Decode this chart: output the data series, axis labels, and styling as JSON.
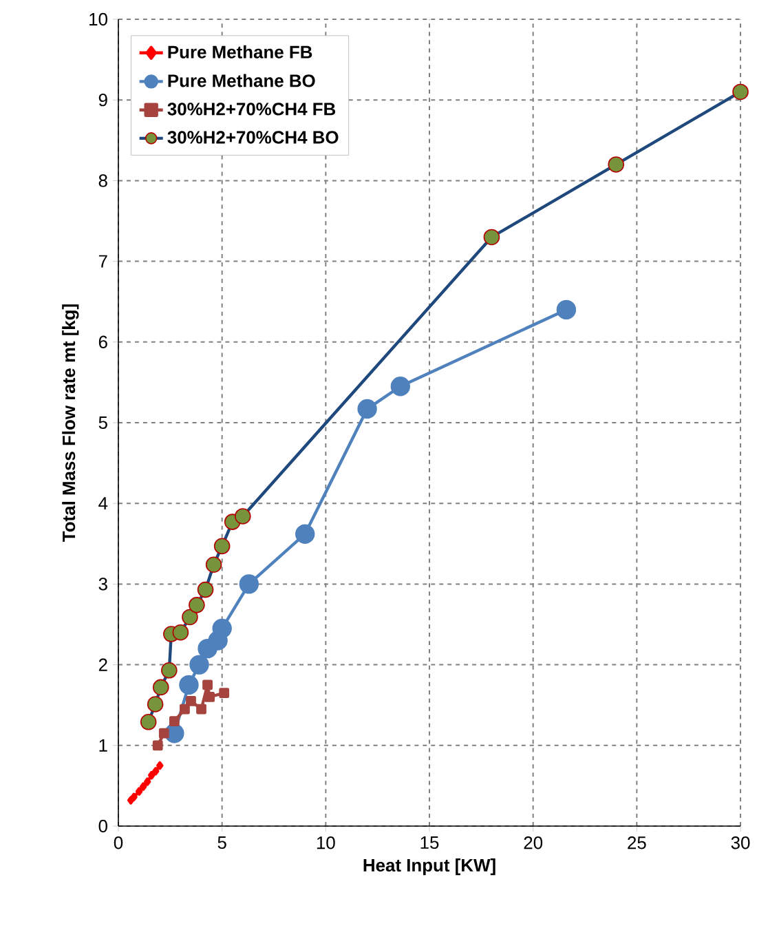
{
  "chart_data": {
    "type": "line",
    "xlabel": "Heat Input [KW]",
    "ylabel": "Total Mass  Flow rate  mt [kg]",
    "xlim": [
      0,
      30
    ],
    "ylim": [
      0,
      10
    ],
    "xticks": [
      0,
      5,
      10,
      15,
      20,
      25,
      30
    ],
    "yticks": [
      0,
      1,
      2,
      3,
      4,
      5,
      6,
      7,
      8,
      9,
      10
    ],
    "grid": true,
    "legend": "top left",
    "line_style": "solid",
    "series": [
      {
        "name": "Pure Methane FB",
        "color": "#ff0000",
        "marker": "diamond",
        "x": [
          0.6,
          0.75,
          1.0,
          1.2,
          1.4,
          1.6,
          1.8,
          2.0
        ],
        "values": [
          0.32,
          0.36,
          0.43,
          0.49,
          0.55,
          0.63,
          0.68,
          0.75
        ]
      },
      {
        "name": "Pure Methane BO",
        "color": "#4f81bd",
        "marker": "circle",
        "x": [
          2.7,
          3.4,
          3.9,
          4.3,
          4.8,
          5.0,
          6.3,
          9.0,
          12.0,
          13.6,
          21.6
        ],
        "values": [
          1.15,
          1.75,
          2.0,
          2.2,
          2.3,
          2.45,
          3.0,
          3.62,
          5.17,
          5.45,
          6.4
        ]
      },
      {
        "name": "30%H2+70%CH4 FB",
        "color": "#a5433f",
        "marker": "square",
        "x": [
          1.9,
          2.2,
          2.7,
          3.2,
          3.5,
          4.0,
          4.3,
          4.4,
          5.1
        ],
        "values": [
          1.0,
          1.15,
          1.3,
          1.45,
          1.55,
          1.45,
          1.75,
          1.6,
          1.65
        ]
      },
      {
        "name": "30%H2+70%CH4 BO",
        "color": "#1f497d",
        "marker": "circle",
        "colors": [
          "#77933c",
          "#77933c",
          "#77933c",
          "#77933c",
          "#77933c",
          "#77933c",
          "#77933c",
          "#77933c",
          "#77933c",
          "#77933c",
          "#77933c",
          "#77933c",
          "#77933c",
          "#77933c",
          "#77933c",
          "#77933c"
        ],
        "x": [
          1.45,
          1.78,
          2.05,
          2.45,
          2.55,
          3.0,
          3.45,
          3.78,
          4.2,
          4.6,
          5.0,
          5.5,
          6.0,
          18.0,
          24.0,
          30.0
        ],
        "values": [
          1.29,
          1.51,
          1.72,
          1.93,
          2.38,
          2.4,
          2.59,
          2.74,
          2.93,
          3.24,
          3.47,
          3.77,
          3.84,
          7.3,
          8.2,
          9.1
        ]
      }
    ]
  }
}
